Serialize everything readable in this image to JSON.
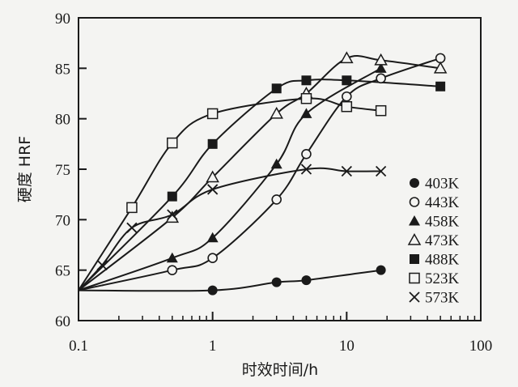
{
  "chart_data": {
    "type": "line",
    "xlabel": "时效时间/h",
    "ylabel": "硬度 HRF",
    "x_scale": "log",
    "xlim": [
      0.1,
      100
    ],
    "ylim": [
      60,
      90
    ],
    "x_ticks": [
      {
        "value": 0.1,
        "label": "0.1"
      },
      {
        "value": 1,
        "label": "1"
      },
      {
        "value": 10,
        "label": "10"
      },
      {
        "value": 100,
        "label": "100"
      }
    ],
    "y_ticks": [
      {
        "value": 60,
        "label": "60"
      },
      {
        "value": 65,
        "label": "65"
      },
      {
        "value": 70,
        "label": "70"
      },
      {
        "value": 75,
        "label": "75"
      },
      {
        "value": 80,
        "label": "80"
      },
      {
        "value": 85,
        "label": "85"
      },
      {
        "value": 90,
        "label": "90"
      }
    ],
    "grid": false,
    "legend_position": "right",
    "series": [
      {
        "name": "403K",
        "marker": "filled-circle",
        "x": [
          0.1,
          1,
          3,
          5,
          18
        ],
        "y": [
          63,
          63,
          63.8,
          64,
          65
        ]
      },
      {
        "name": "443K",
        "marker": "open-circle",
        "x": [
          0.1,
          0.5,
          1,
          3,
          5,
          10,
          18,
          50
        ],
        "y": [
          63,
          65,
          66.2,
          72,
          76.5,
          82.2,
          84,
          86
        ]
      },
      {
        "name": "458K",
        "marker": "filled-triangle",
        "x": [
          0.1,
          0.5,
          1,
          3,
          5,
          18
        ],
        "y": [
          63,
          66.2,
          68.2,
          75.5,
          80.5,
          85
        ]
      },
      {
        "name": "473K",
        "marker": "open-triangle",
        "x": [
          0.1,
          0.5,
          1,
          3,
          5,
          10,
          18,
          50
        ],
        "y": [
          63,
          70.2,
          74.2,
          80.5,
          82.5,
          86,
          85.8,
          85
        ]
      },
      {
        "name": "488K",
        "marker": "filled-square",
        "x": [
          0.1,
          0.5,
          1,
          3,
          5,
          10,
          50
        ],
        "y": [
          63,
          72.3,
          77.5,
          83,
          83.8,
          83.8,
          83.2
        ]
      },
      {
        "name": "523K",
        "marker": "open-square",
        "x": [
          0.1,
          0.25,
          0.5,
          1,
          5,
          10,
          18
        ],
        "y": [
          63,
          71.2,
          77.6,
          80.5,
          82,
          81.2,
          80.8
        ]
      },
      {
        "name": "573K",
        "marker": "cross",
        "x": [
          0.1,
          0.15,
          0.25,
          0.5,
          1,
          5,
          10,
          18
        ],
        "y": [
          63,
          65.5,
          69.2,
          70.5,
          73,
          75,
          74.8,
          74.8
        ]
      }
    ]
  }
}
